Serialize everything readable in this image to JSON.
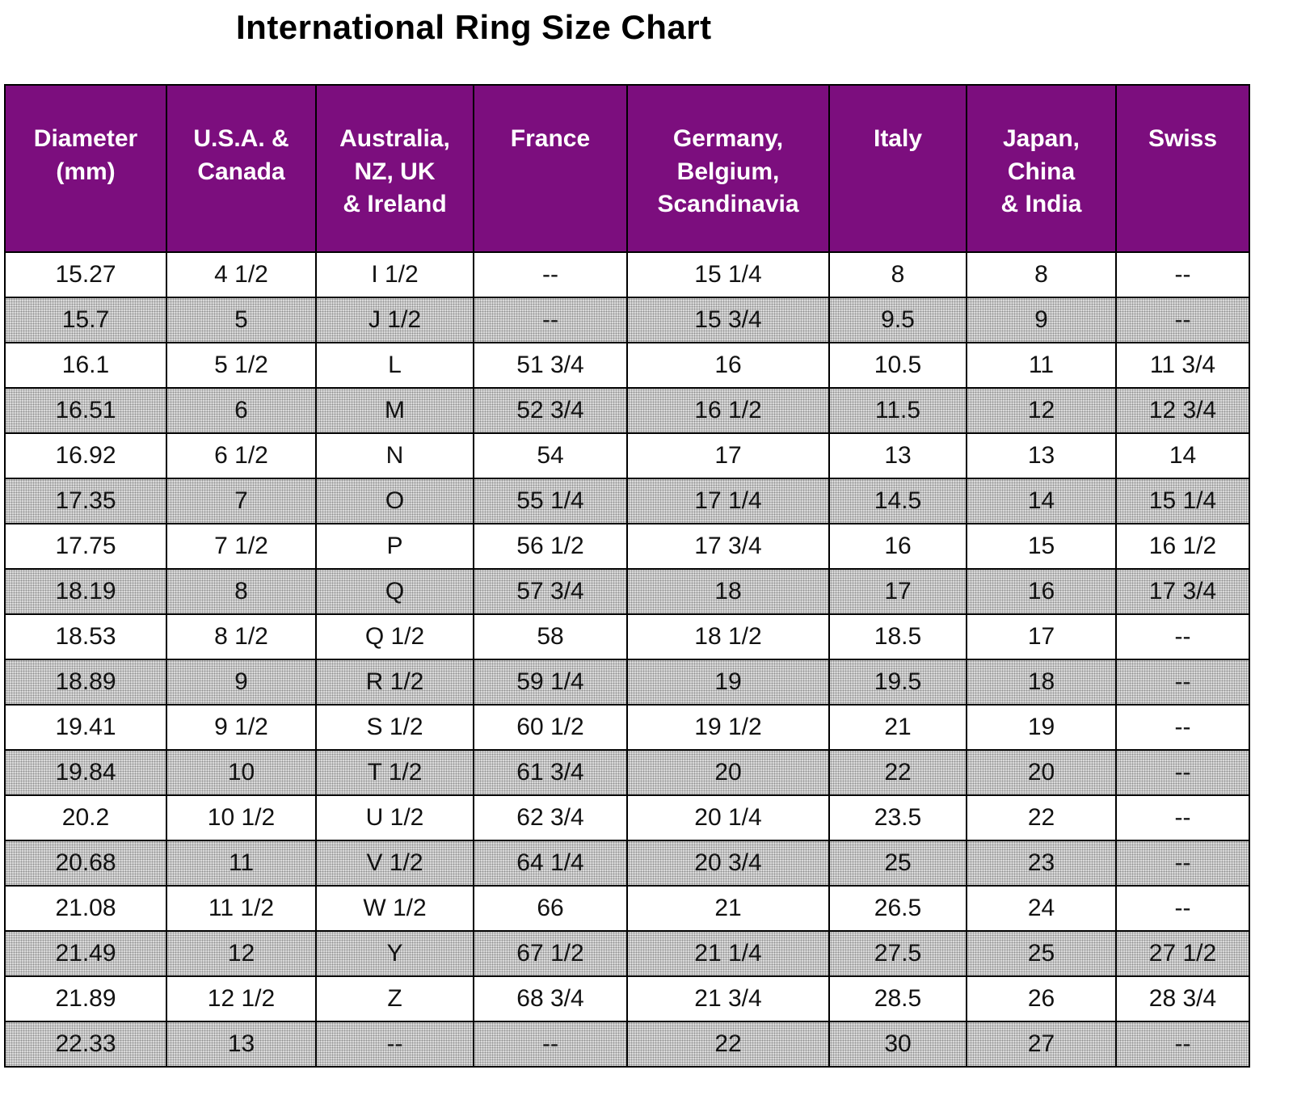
{
  "title": "International Ring Size Chart",
  "chart_data": {
    "type": "table",
    "title": "International Ring Size Chart",
    "columns": [
      "Diameter\n(mm)",
      "U.S.A. &\nCanada",
      "Australia,\nNZ, UK\n& Ireland",
      "France",
      "Germany,\nBelgium,\nScandinavia",
      "Italy",
      "Japan,\nChina\n& India",
      "Swiss"
    ],
    "rows": [
      [
        "15.27",
        "4 1/2",
        "I 1/2",
        "--",
        "15 1/4",
        "8",
        "8",
        "--"
      ],
      [
        "15.7",
        "5",
        "J 1/2",
        "--",
        "15 3/4",
        "9.5",
        "9",
        "--"
      ],
      [
        "16.1",
        "5 1/2",
        "L",
        "51 3/4",
        "16",
        "10.5",
        "11",
        "11 3/4"
      ],
      [
        "16.51",
        "6",
        "M",
        "52 3/4",
        "16 1/2",
        "11.5",
        "12",
        "12 3/4"
      ],
      [
        "16.92",
        "6 1/2",
        "N",
        "54",
        "17",
        "13",
        "13",
        "14"
      ],
      [
        "17.35",
        "7",
        "O",
        "55 1/4",
        "17 1/4",
        "14.5",
        "14",
        "15 1/4"
      ],
      [
        "17.75",
        "7 1/2",
        "P",
        "56 1/2",
        "17 3/4",
        "16",
        "15",
        "16 1/2"
      ],
      [
        "18.19",
        "8",
        "Q",
        "57 3/4",
        "18",
        "17",
        "16",
        "17 3/4"
      ],
      [
        "18.53",
        "8 1/2",
        "Q 1/2",
        "58",
        "18 1/2",
        "18.5",
        "17",
        "--"
      ],
      [
        "18.89",
        "9",
        "R 1/2",
        "59 1/4",
        "19",
        "19.5",
        "18",
        "--"
      ],
      [
        "19.41",
        "9 1/2",
        "S 1/2",
        "60 1/2",
        "19 1/2",
        "21",
        "19",
        "--"
      ],
      [
        "19.84",
        "10",
        "T 1/2",
        "61 3/4",
        "20",
        "22",
        "20",
        "--"
      ],
      [
        "20.2",
        "10 1/2",
        "U 1/2",
        "62 3/4",
        "20 1/4",
        "23.5",
        "22",
        "--"
      ],
      [
        "20.68",
        "11",
        "V 1/2",
        "64 1/4",
        "20 3/4",
        "25",
        "23",
        "--"
      ],
      [
        "21.08",
        "11 1/2",
        "W 1/2",
        "66",
        "21",
        "26.5",
        "24",
        "--"
      ],
      [
        "21.49",
        "12",
        "Y",
        "67 1/2",
        "21 1/4",
        "27.5",
        "25",
        "27 1/2"
      ],
      [
        "21.89",
        "12 1/2",
        "Z",
        "68 3/4",
        "21 3/4",
        "28.5",
        "26",
        "28 3/4"
      ],
      [
        "22.33",
        "13",
        "--",
        "--",
        "22",
        "30",
        "27",
        "--"
      ]
    ],
    "layout": {
      "row_striping": "alternating white and hatched gray, starting with white",
      "header_style": "purple background, white bold text",
      "grid": "on"
    }
  },
  "colors": {
    "header_bg": "#7c0e7e",
    "header_text": "#ffffff",
    "alt_row_bg": "#d9d9d9",
    "border": "#000000",
    "title_text": "#000000"
  }
}
